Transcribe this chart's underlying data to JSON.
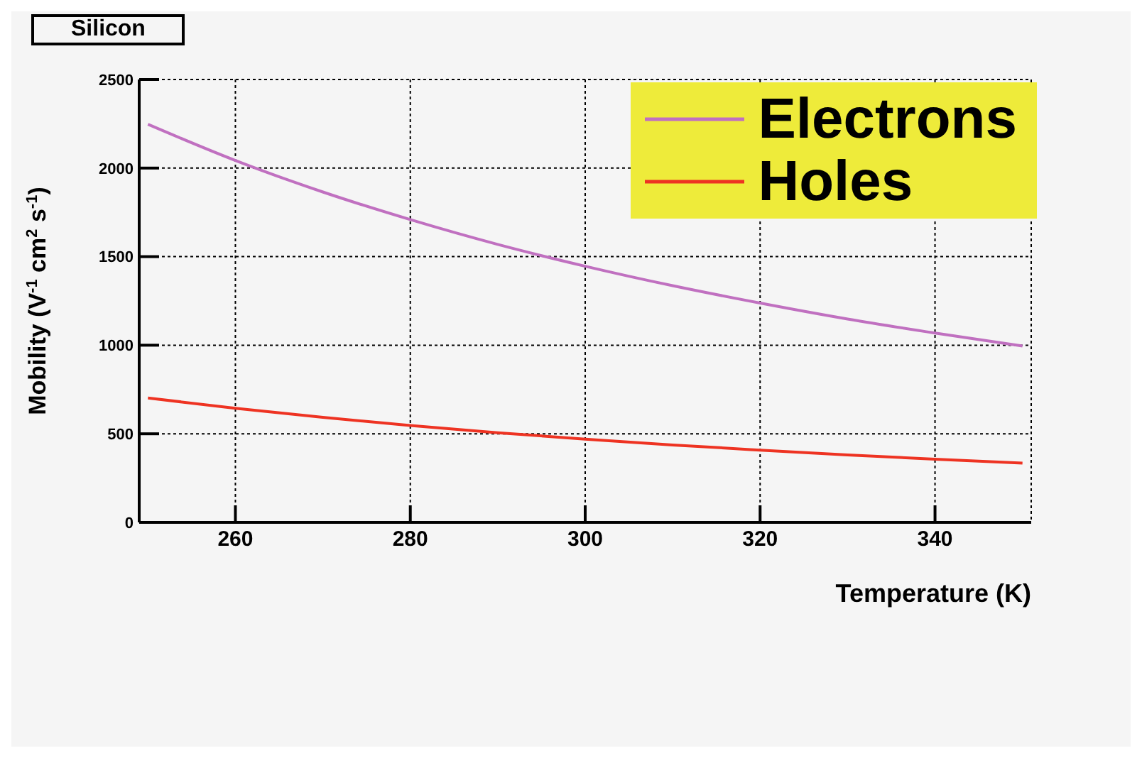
{
  "chart_data": {
    "type": "line",
    "title": "Silicon",
    "xlabel": "Temperature (K)",
    "ylabel": "Mobility (V$^{-1}$ cm$^{2}$ s$^{-1}$)",
    "x": [
      250,
      260,
      270,
      280,
      290,
      300,
      310,
      320,
      330,
      340,
      350
    ],
    "series": [
      {
        "name": "Electrons",
        "color": "#c070c0",
        "values": [
          2247,
          2043,
          1865,
          1709,
          1569,
          1446,
          1336,
          1238,
          1148,
          1069,
          996
        ]
      },
      {
        "name": "Holes",
        "color": "#ee3322",
        "values": [
          702,
          644,
          593,
          547,
          506,
          470,
          437,
          408,
          381,
          357,
          335
        ]
      }
    ],
    "xlim": [
      249,
      351
    ],
    "xticks": [
      260,
      280,
      300,
      320,
      340
    ],
    "ylim": [
      0,
      2500
    ],
    "yticks": [
      0,
      500,
      1000,
      1500,
      2000,
      2500
    ],
    "grid": true,
    "legend": "top right",
    "marker": "none",
    "line_style": "solid"
  }
}
